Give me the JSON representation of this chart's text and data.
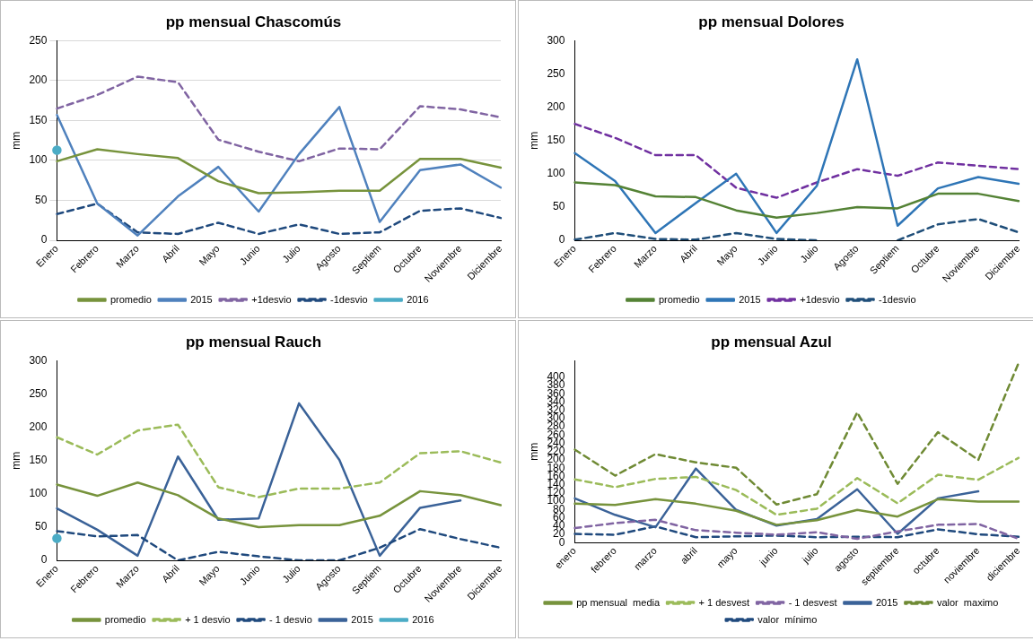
{
  "chart_data": [
    {
      "type": "line",
      "title": "pp mensual Chascomús",
      "ylabel": "mm",
      "categories": [
        "Enero",
        "Febrero",
        "Marzo",
        "Abril",
        "Mayo",
        "Junio",
        "Julio",
        "Agosto",
        "Septiem",
        "Octubre",
        "Noviembre",
        "Diciembre"
      ],
      "ylim": [
        0,
        250
      ],
      "yticks": [
        0,
        50,
        100,
        150,
        200,
        250
      ],
      "grid": "y",
      "legend": "bottom",
      "series": [
        {
          "name": "promedio",
          "color": "#77933c",
          "line_style": "solid",
          "values": [
            99,
            114,
            108,
            103,
            74,
            59,
            60,
            62,
            62,
            102,
            102,
            91
          ]
        },
        {
          "name": "2015",
          "color": "#4f81bd",
          "line_style": "solid",
          "values": [
            157,
            46,
            6,
            55,
            92,
            36,
            108,
            167,
            23,
            88,
            95,
            66
          ]
        },
        {
          "name": "+1desvio",
          "color": "#8064a2",
          "line_style": "dashed",
          "values": [
            165,
            182,
            205,
            198,
            126,
            111,
            99,
            115,
            114,
            168,
            164,
            154
          ]
        },
        {
          "name": "-1desvio",
          "color": "#1f497d",
          "line_style": "dashed",
          "values": [
            33,
            46,
            10,
            8,
            22,
            8,
            20,
            8,
            10,
            37,
            40,
            28
          ]
        },
        {
          "name": "2016",
          "color": "#4bacc6",
          "line_style": "solid",
          "marker": "circle",
          "values": [
            113,
            null,
            null,
            null,
            null,
            null,
            null,
            null,
            null,
            null,
            null,
            null
          ]
        }
      ]
    },
    {
      "type": "line",
      "title": "pp mensual Dolores",
      "ylabel": "mm",
      "categories": [
        "Enero",
        "Febrero",
        "Marzo",
        "Abril",
        "Mayo",
        "Junio",
        "Julio",
        "Agosto",
        "Septiem",
        "Octubre",
        "Noviembre",
        "Diciembre"
      ],
      "ylim": [
        0,
        300
      ],
      "yticks": [
        0,
        50,
        100,
        150,
        200,
        250,
        300
      ],
      "legend": "bottom",
      "series": [
        {
          "name": "promedio",
          "color": "#548235",
          "line_style": "solid",
          "values": [
            87,
            83,
            66,
            65,
            45,
            34,
            41,
            50,
            48,
            70,
            70,
            59
          ]
        },
        {
          "name": "2015",
          "color": "#2e75b6",
          "line_style": "solid",
          "values": [
            131,
            89,
            11,
            56,
            100,
            11,
            82,
            272,
            22,
            78,
            95,
            85
          ]
        },
        {
          "name": "+1desvio",
          "color": "#7030a0",
          "line_style": "dashed",
          "values": [
            175,
            154,
            128,
            128,
            79,
            64,
            87,
            107,
            97,
            117,
            112,
            107
          ]
        },
        {
          "name": "-1desvio",
          "color": "#1f4e79",
          "line_style": "dashed",
          "values": [
            1,
            11,
            2,
            1,
            11,
            2,
            0,
            null,
            0,
            24,
            32,
            12
          ]
        }
      ]
    },
    {
      "type": "line",
      "title": "pp mensual Rauch",
      "ylabel": "mm",
      "categories": [
        "Enero",
        "Febrero",
        "Marzo",
        "Abril",
        "Mayo",
        "Junio",
        "Julio",
        "Agosto",
        "Septiem",
        "Octubre",
        "Noviembre",
        "Diciembre"
      ],
      "ylim": [
        0,
        300
      ],
      "yticks": [
        0,
        50,
        100,
        150,
        200,
        250,
        300
      ],
      "legend": "bottom",
      "series": [
        {
          "name": "promedio",
          "color": "#77933c",
          "line_style": "solid",
          "values": [
            114,
            97,
            117,
            98,
            63,
            50,
            53,
            53,
            67,
            104,
            98,
            83
          ]
        },
        {
          "name": "+ 1 desvio",
          "color": "#9bbb59",
          "line_style": "dashed",
          "values": [
            185,
            159,
            195,
            204,
            110,
            95,
            108,
            108,
            117,
            161,
            164,
            147
          ]
        },
        {
          "name": "- 1 desvio",
          "color": "#1f497d",
          "line_style": "dashed",
          "values": [
            44,
            36,
            38,
            0,
            13,
            6,
            0,
            0,
            19,
            47,
            32,
            19
          ]
        },
        {
          "name": "2015",
          "color": "#3a6298",
          "line_style": "solid",
          "values": [
            78,
            46,
            7,
            156,
            61,
            63,
            236,
            151,
            7,
            79,
            90,
            null
          ]
        },
        {
          "name": "2016",
          "color": "#4bacc6",
          "line_style": "solid",
          "marker": "circle",
          "values": [
            33,
            null,
            null,
            null,
            null,
            null,
            null,
            null,
            null,
            null,
            null,
            null
          ]
        }
      ]
    },
    {
      "type": "line",
      "title": "pp mensual Azul",
      "ylabel": "mm",
      "categories": [
        "enero",
        "febrero",
        "marzo",
        "abril",
        "mayo",
        "junio",
        "julio",
        "agosto",
        "septiembre",
        "octubre",
        "noviembre",
        "diciembre"
      ],
      "ylim": [
        0,
        440
      ],
      "yticks": [
        0,
        20,
        40,
        60,
        80,
        100,
        120,
        140,
        160,
        180,
        200,
        220,
        240,
        260,
        280,
        300,
        320,
        340,
        360,
        380,
        400
      ],
      "legend": "bottom",
      "series": [
        {
          "name": "pp mensual  media",
          "color": "#77933c",
          "line_style": "solid",
          "values": [
            94,
            91,
            105,
            94,
            77,
            43,
            54,
            79,
            63,
            105,
            99,
            99
          ]
        },
        {
          "name": "+ 1 desvest",
          "color": "#9bbb59",
          "line_style": "dashed",
          "values": [
            153,
            134,
            154,
            159,
            127,
            67,
            82,
            156,
            95,
            164,
            152,
            205
          ]
        },
        {
          "name": "- 1 desvest",
          "color": "#8064a2",
          "line_style": "dashed",
          "values": [
            35,
            47,
            55,
            30,
            24,
            19,
            25,
            9,
            27,
            43,
            45,
            9
          ]
        },
        {
          "name": "2015",
          "color": "#3a6298",
          "line_style": "solid",
          "values": [
            107,
            67,
            37,
            179,
            79,
            41,
            57,
            129,
            21,
            107,
            124,
            null
          ]
        },
        {
          "name": "valor  maximo",
          "color": "#6f8a34",
          "line_style": "dashed",
          "values": [
            225,
            162,
            214,
            194,
            181,
            92,
            117,
            315,
            142,
            267,
            200,
            435
          ]
        },
        {
          "name": "valor  mínimo",
          "color": "#1f497d",
          "line_style": "dashed",
          "values": [
            21,
            19,
            39,
            13,
            15,
            17,
            13,
            14,
            13,
            32,
            20,
            14
          ]
        }
      ]
    }
  ]
}
